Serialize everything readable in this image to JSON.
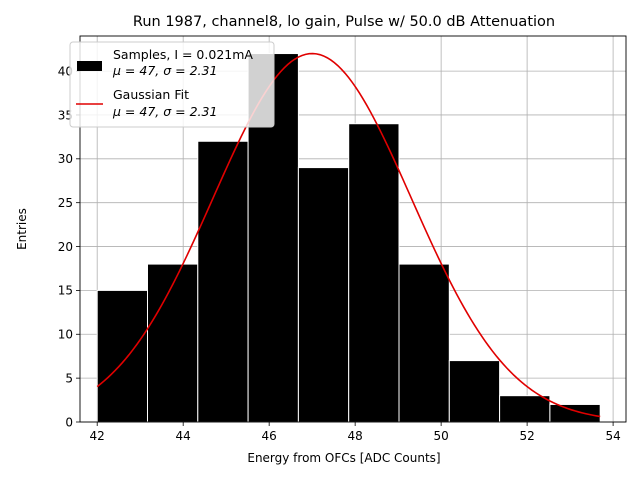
{
  "chart_data": {
    "type": "bar",
    "title": "Run 1987, channel8, lo gain, Pulse w/ 50.0 dB Attenuation",
    "xlabel": "Energy from OFCs [ADC Counts]",
    "ylabel": "Entries",
    "xlim": [
      41.6,
      54.3
    ],
    "ylim": [
      0,
      44
    ],
    "grid": true,
    "xticks": [
      42,
      44,
      46,
      48,
      50,
      52,
      54
    ],
    "yticks": [
      0,
      5,
      10,
      15,
      20,
      25,
      30,
      35,
      40
    ],
    "histogram": {
      "name": "Samples",
      "bin_edges": [
        42.0,
        43.17,
        44.34,
        45.51,
        46.68,
        47.85,
        49.02,
        50.19,
        51.36,
        52.53,
        53.7
      ],
      "counts": [
        15,
        18,
        32,
        42,
        29,
        34,
        18,
        7,
        3,
        2
      ],
      "color": "#000000",
      "edgecolor": "#ffffff"
    },
    "fit": {
      "name": "Gaussian Fit",
      "type": "gaussian",
      "mu": 47,
      "sigma": 2.31,
      "peak": 42,
      "x_range": [
        42,
        53.7
      ],
      "color": "#e00000"
    },
    "legend": {
      "position": "top-left",
      "entries": [
        {
          "line1": "Samples, I = 0.021mA",
          "line2": "μ = 47, σ = 2.31"
        },
        {
          "line1": "Gaussian Fit",
          "line2": "μ = 47, σ = 2.31"
        }
      ]
    }
  }
}
